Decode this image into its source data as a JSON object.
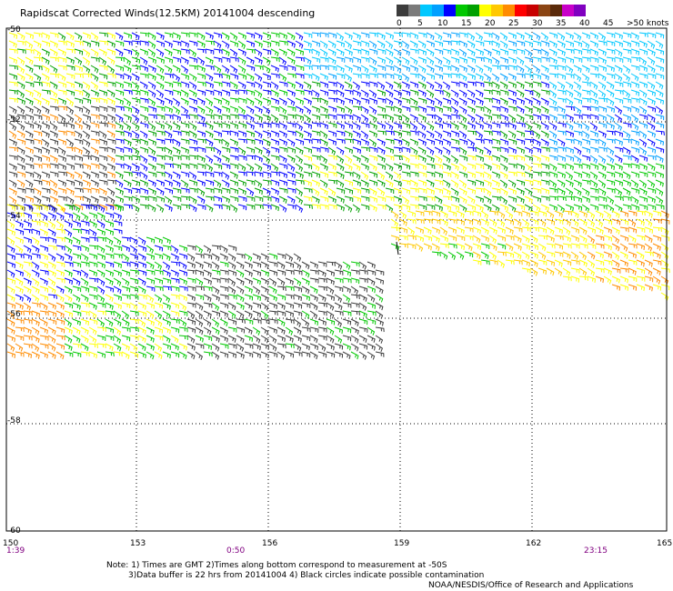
{
  "title": "Rapidscat Corrected Winds(12.5KM) 20141004 descending",
  "legend": {
    "labels": [
      "0",
      "5",
      "10",
      "15",
      "20",
      "25",
      "30",
      "35",
      "40",
      "45",
      ">50 knots"
    ],
    "colors": [
      "#3c3c3c",
      "#7a7a7a",
      "#00c8ff",
      "#00a0ff",
      "#0000ff",
      "#00c800",
      "#00a000",
      "#ffff00",
      "#ffc800",
      "#ff8c00",
      "#ff0000",
      "#c80000",
      "#8b4513",
      "#5a2a0a",
      "#c800c8",
      "#8000c0"
    ]
  },
  "axes": {
    "lat_labels": [
      "-50",
      "-52",
      "-54",
      "-56",
      "-58",
      "-60"
    ],
    "lon_labels": [
      "150",
      "153",
      "156",
      "159",
      "162",
      "165"
    ]
  },
  "times": [
    "1:39",
    "0:50",
    "23:15"
  ],
  "notes": {
    "line1": "Note: 1) Times are GMT 2)Times along bottom correspond to measurement at -50S",
    "line2": "3)Data buffer is 22 hrs from 20141004 4) Black circles indicate possible contamination",
    "line3": "NOAA/NESDIS/Office of Research and Applications"
  }
}
